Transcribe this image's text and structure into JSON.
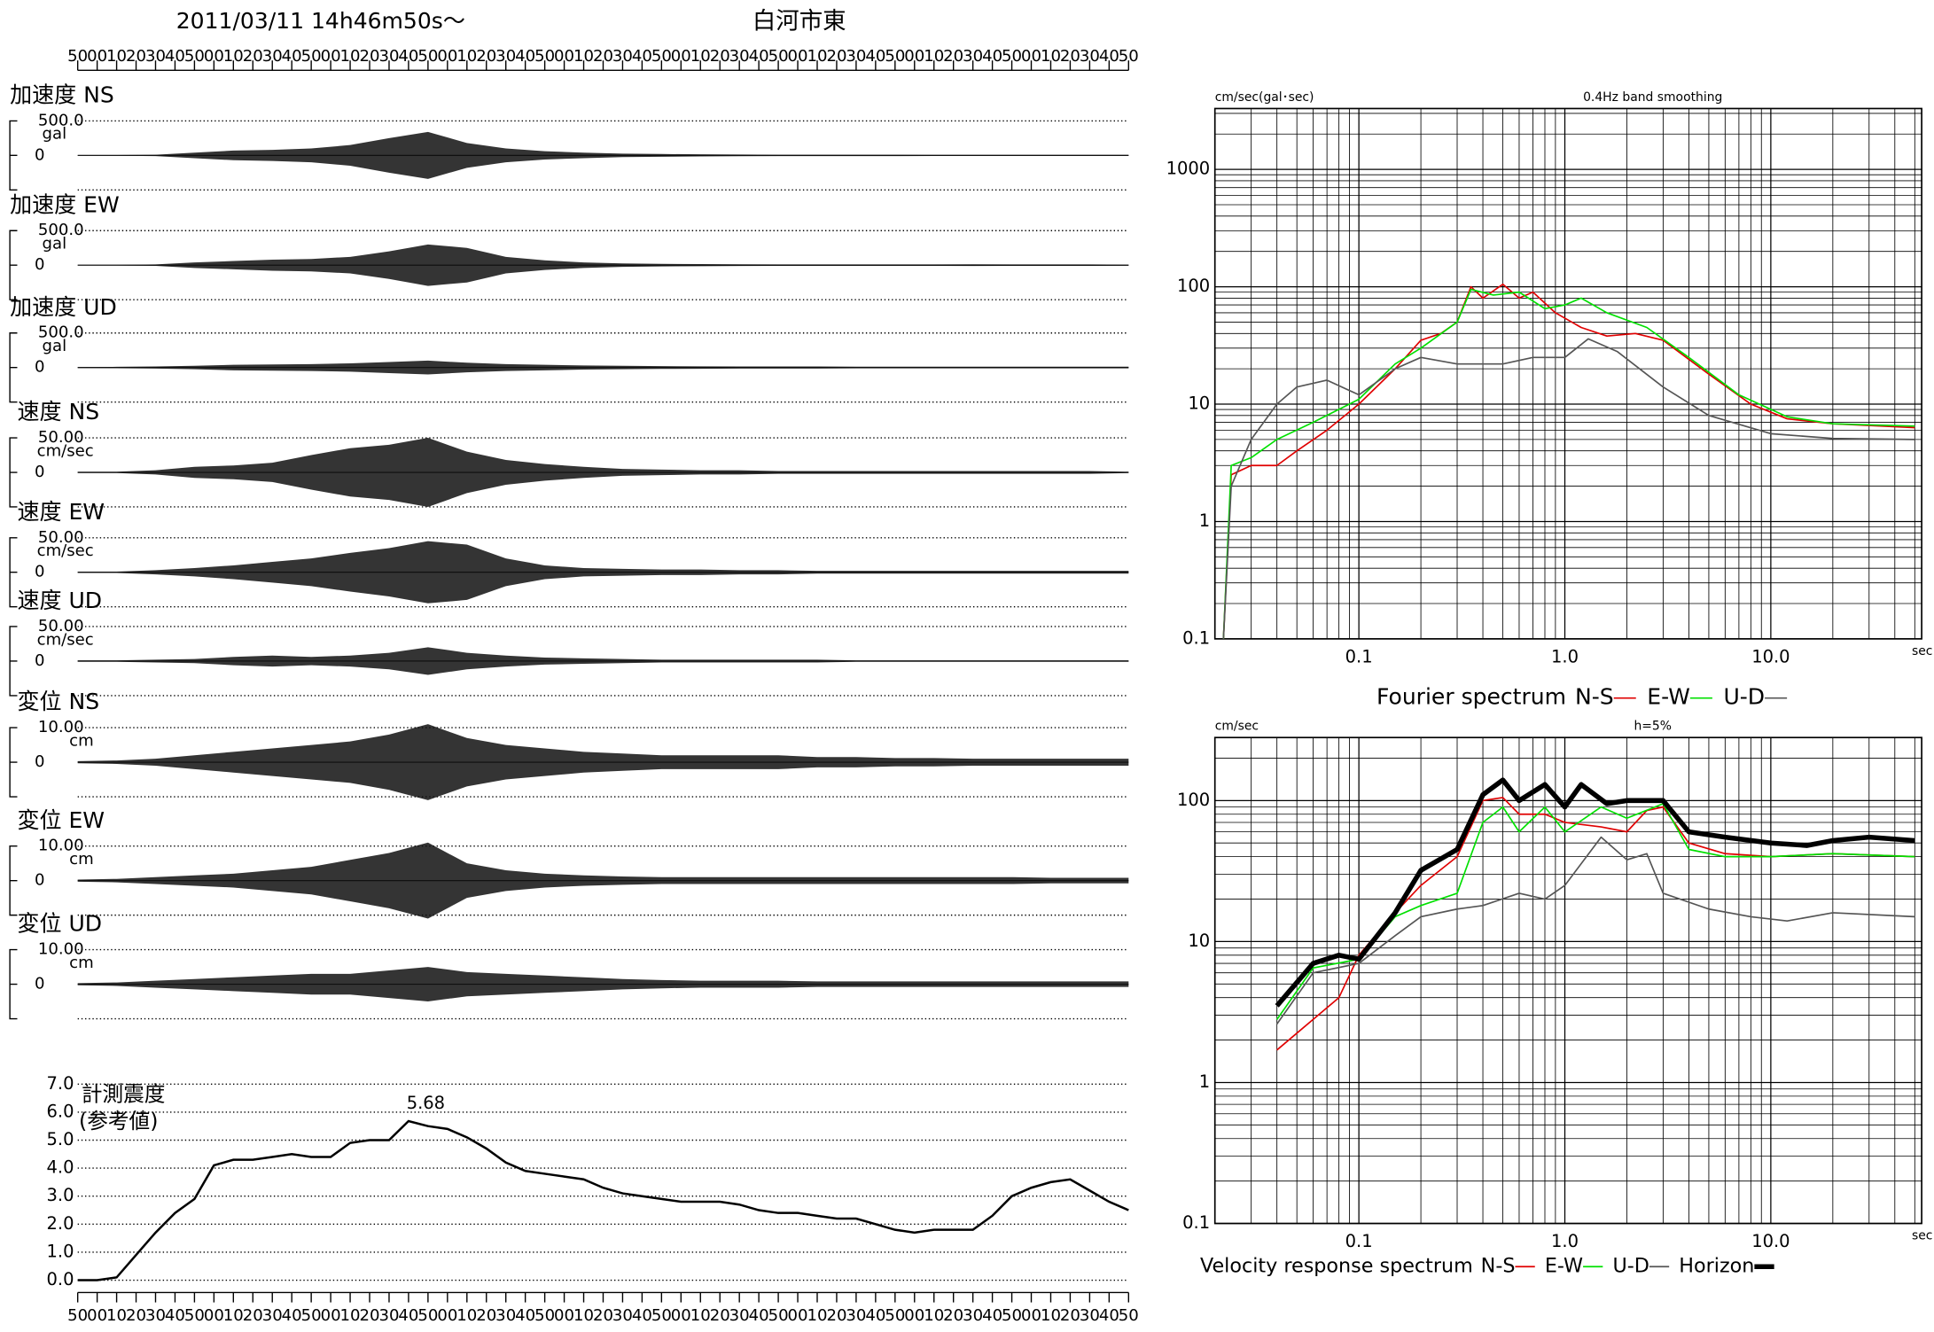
{
  "header": {
    "datetime": "2011/03/11  14h46m50s〜",
    "station": "白河市東"
  },
  "time_axis": [
    "50",
    "00",
    "10",
    "20",
    "30",
    "40",
    "50",
    "00",
    "10",
    "20",
    "30",
    "40",
    "50",
    "00",
    "10",
    "20",
    "30",
    "40",
    "50",
    "00",
    "10",
    "20",
    "30",
    "40",
    "50",
    "00",
    "10",
    "20",
    "30",
    "40",
    "50",
    "00",
    "10",
    "20",
    "30",
    "40",
    "50",
    "00",
    "10",
    "20",
    "30",
    "40",
    "50",
    "00",
    "10",
    "20",
    "30",
    "40",
    "50",
    "00",
    "10",
    "20",
    "30",
    "40",
    "50"
  ],
  "waveforms": [
    {
      "name": "加速度 NS",
      "scale": {
        "value": 500,
        "label": "500.0"
      },
      "unit": "gal",
      "zero": "0",
      "envelope": [
        5,
        5,
        10,
        40,
        70,
        80,
        100,
        150,
        250,
        340,
        180,
        100,
        60,
        40,
        25,
        20,
        15,
        12,
        10,
        10,
        10,
        10,
        8,
        8,
        8,
        8,
        8,
        8
      ]
    },
    {
      "name": "加速度 EW",
      "scale": {
        "value": 500,
        "label": "500.0"
      },
      "unit": "gal",
      "zero": "0",
      "envelope": [
        5,
        5,
        10,
        40,
        60,
        80,
        90,
        120,
        200,
        300,
        250,
        120,
        70,
        40,
        25,
        18,
        15,
        12,
        10,
        10,
        10,
        10,
        10,
        12,
        10,
        10,
        10,
        8
      ]
    },
    {
      "name": "加速度 UD",
      "scale": {
        "value": 500,
        "label": "500.0"
      },
      "unit": "gal",
      "zero": "0",
      "envelope": [
        8,
        10,
        15,
        25,
        40,
        45,
        50,
        60,
        80,
        100,
        70,
        50,
        40,
        30,
        25,
        20,
        18,
        15,
        15,
        15,
        12,
        12,
        12,
        12,
        12,
        12,
        12,
        12
      ]
    },
    {
      "name": "速度 NS",
      "scale": {
        "value": 50,
        "label": "50.00"
      },
      "unit": "cm/sec",
      "zero": "0",
      "envelope": [
        1,
        1,
        3,
        8,
        10,
        14,
        25,
        35,
        40,
        50,
        30,
        18,
        12,
        8,
        5,
        4,
        3,
        3,
        2,
        2,
        2,
        2,
        2,
        2,
        2,
        2,
        2,
        1
      ]
    },
    {
      "name": "速度 EW",
      "scale": {
        "value": 50,
        "label": "50.00"
      },
      "unit": "cm/sec",
      "zero": "0",
      "envelope": [
        1,
        1,
        3,
        6,
        10,
        15,
        20,
        28,
        35,
        45,
        40,
        20,
        10,
        6,
        5,
        4,
        4,
        3,
        3,
        2,
        2,
        2,
        2,
        2,
        2,
        2,
        2,
        2
      ]
    },
    {
      "name": "速度 UD",
      "scale": {
        "value": 50,
        "label": "50.00"
      },
      "unit": "cm/sec",
      "zero": "0",
      "envelope": [
        1,
        1,
        2,
        3,
        6,
        8,
        6,
        8,
        12,
        20,
        12,
        8,
        5,
        4,
        3,
        2,
        2,
        2,
        2,
        2,
        1,
        1,
        1,
        1,
        1,
        1,
        1,
        1
      ]
    },
    {
      "name": "変位 NS",
      "scale": {
        "value": 10,
        "label": "10.00"
      },
      "unit": "cm",
      "zero": "0",
      "envelope": [
        0.3,
        0.5,
        1,
        2,
        3,
        4,
        5,
        6,
        8,
        11,
        7,
        5,
        4,
        3,
        2.5,
        2,
        2,
        2,
        2,
        1.5,
        1.5,
        1.2,
        1.2,
        1,
        1,
        1,
        1,
        1
      ]
    },
    {
      "name": "変位 EW",
      "scale": {
        "value": 10,
        "label": "10.00"
      },
      "unit": "cm",
      "zero": "0",
      "envelope": [
        0.3,
        0.5,
        1,
        1.5,
        2,
        3,
        4,
        6,
        8,
        11,
        5,
        3,
        2,
        1.5,
        1.2,
        1,
        1,
        1,
        1,
        1,
        1,
        1,
        1,
        1,
        1,
        0.8,
        0.8,
        0.8
      ]
    },
    {
      "name": "変位 UD",
      "scale": {
        "value": 10,
        "label": "10.00"
      },
      "unit": "cm",
      "zero": "0",
      "envelope": [
        0.3,
        0.5,
        1,
        1.5,
        2,
        2.5,
        3,
        3,
        4,
        5,
        3.5,
        3,
        2.5,
        2,
        1.5,
        1.2,
        1,
        1,
        1,
        0.8,
        0.8,
        0.8,
        0.8,
        0.8,
        0.8,
        0.8,
        0.8,
        0.8
      ]
    }
  ],
  "intensity": {
    "title": "計測震度",
    "subtitle": "(参考値)",
    "peak_label": "5.68",
    "ylim": [
      0,
      7
    ],
    "yticks": [
      {
        "value": 0,
        "label": "0.0"
      },
      {
        "value": 1,
        "label": "1.0"
      },
      {
        "value": 2,
        "label": "2.0"
      },
      {
        "value": 3,
        "label": "3.0"
      },
      {
        "value": 4,
        "label": "4.0"
      },
      {
        "value": 5,
        "label": "5.0"
      },
      {
        "value": 6,
        "label": "6.0"
      },
      {
        "value": 7,
        "label": "7.0"
      }
    ],
    "values": [
      0,
      0,
      0.1,
      0.9,
      1.7,
      2.4,
      2.9,
      4.1,
      4.3,
      4.3,
      4.4,
      4.5,
      4.4,
      4.4,
      4.9,
      5.0,
      5.0,
      5.68,
      5.5,
      5.4,
      5.1,
      4.7,
      4.2,
      3.9,
      3.8,
      3.7,
      3.6,
      3.3,
      3.1,
      3.0,
      2.9,
      2.8,
      2.8,
      2.8,
      2.7,
      2.5,
      2.4,
      2.4,
      2.3,
      2.2,
      2.2,
      2.0,
      1.8,
      1.7,
      1.8,
      1.8,
      1.8,
      2.3,
      3.0,
      3.3,
      3.5,
      3.6,
      3.2,
      2.8,
      2.5
    ]
  },
  "chart_data": [
    {
      "type": "line",
      "log_x": true,
      "log_y": true,
      "grid": true,
      "y_unit": "cm/sec(gal･sec)",
      "subtitle": "0.4Hz band smoothing",
      "x_unit": "sec",
      "legend_title": "Fourier spectrum",
      "xlim": [
        0.02,
        54
      ],
      "ylim": [
        0.1,
        3300
      ],
      "xticks": [
        0.1,
        {
          "value": 1,
          "label": "1.0"
        },
        {
          "value": 10,
          "label": "10.0"
        }
      ],
      "yticks": [
        0.1,
        1,
        10,
        100,
        1000
      ],
      "series": [
        {
          "name": "N-S",
          "color": "#e00000",
          "linewidth": 1.2,
          "x": [
            0.022,
            0.024,
            0.03,
            0.04,
            0.05,
            0.07,
            0.1,
            0.15,
            0.2,
            0.25,
            0.3,
            0.35,
            0.4,
            0.5,
            0.6,
            0.7,
            0.9,
            1.2,
            1.6,
            2.2,
            3,
            5,
            8,
            12,
            20,
            50
          ],
          "values": [
            0.1,
            2.5,
            3,
            3,
            4,
            6,
            10,
            20,
            35,
            40,
            50,
            100,
            80,
            105,
            80,
            90,
            60,
            45,
            38,
            40,
            35,
            18,
            10,
            7.5,
            6.8,
            6.3
          ]
        },
        {
          "name": "E-W",
          "color": "#00e000",
          "linewidth": 1.2,
          "x": [
            0.022,
            0.024,
            0.03,
            0.04,
            0.06,
            0.1,
            0.15,
            0.2,
            0.3,
            0.35,
            0.45,
            0.6,
            0.8,
            1.0,
            1.2,
            1.6,
            2.5,
            4,
            7,
            12,
            20,
            50
          ],
          "values": [
            0.1,
            3,
            3.5,
            5,
            7,
            11,
            22,
            30,
            50,
            95,
            85,
            90,
            65,
            70,
            80,
            60,
            45,
            25,
            12,
            7.8,
            6.8,
            6.5
          ]
        },
        {
          "name": "U-D",
          "color": "#555555",
          "linewidth": 1.2,
          "x": [
            0.022,
            0.024,
            0.03,
            0.04,
            0.05,
            0.07,
            0.1,
            0.15,
            0.2,
            0.3,
            0.5,
            0.7,
            1.0,
            1.3,
            1.8,
            3,
            5,
            10,
            20,
            50
          ],
          "values": [
            0.1,
            2,
            5,
            10,
            14,
            16,
            12,
            20,
            25,
            22,
            22,
            25,
            25,
            36,
            28,
            14,
            8,
            5.6,
            5.1,
            5
          ]
        }
      ]
    },
    {
      "type": "line",
      "log_x": true,
      "log_y": true,
      "grid": true,
      "y_unit": "cm/sec",
      "subtitle": "h=5%",
      "x_unit": "sec",
      "legend_title": "Velocity response spectrum",
      "xlim": [
        0.02,
        54
      ],
      "ylim": [
        0.1,
        280
      ],
      "xticks": [
        0.1,
        {
          "value": 1,
          "label": "1.0"
        },
        {
          "value": 10,
          "label": "10.0"
        }
      ],
      "yticks": [
        0.1,
        1,
        10,
        100
      ],
      "series": [
        {
          "name": "N-S",
          "color": "#e00000",
          "linewidth": 1.2,
          "x": [
            0.04,
            0.08,
            0.1,
            0.15,
            0.2,
            0.3,
            0.4,
            0.5,
            0.6,
            0.8,
            1,
            1.5,
            2,
            2.5,
            3,
            4,
            6,
            10,
            20,
            50
          ],
          "values": [
            1.7,
            4,
            8,
            16,
            25,
            40,
            100,
            105,
            80,
            80,
            70,
            65,
            60,
            85,
            90,
            50,
            42,
            40,
            42,
            40
          ]
        },
        {
          "name": "E-W",
          "color": "#00e000",
          "linewidth": 1.2,
          "x": [
            0.04,
            0.06,
            0.1,
            0.15,
            0.2,
            0.3,
            0.4,
            0.5,
            0.6,
            0.8,
            1,
            1.5,
            2,
            3,
            4,
            6,
            10,
            20,
            50
          ],
          "values": [
            2.8,
            6.5,
            7.5,
            15,
            18,
            22,
            70,
            90,
            60,
            90,
            60,
            90,
            75,
            95,
            45,
            40,
            40,
            42,
            40
          ]
        },
        {
          "name": "U-D",
          "color": "#555555",
          "linewidth": 1.2,
          "x": [
            0.04,
            0.06,
            0.1,
            0.15,
            0.2,
            0.3,
            0.4,
            0.6,
            0.8,
            1,
            1.5,
            2,
            2.5,
            3,
            5,
            8,
            12,
            20,
            50
          ],
          "values": [
            2.6,
            6,
            7,
            11,
            15,
            17,
            18,
            22,
            20,
            25,
            55,
            38,
            42,
            22,
            17,
            15,
            14,
            16,
            15
          ]
        },
        {
          "name": "Horizon",
          "color": "#000000",
          "linewidth": 4,
          "x": [
            0.04,
            0.06,
            0.08,
            0.1,
            0.15,
            0.2,
            0.3,
            0.4,
            0.5,
            0.6,
            0.8,
            1,
            1.2,
            1.6,
            2,
            3,
            4,
            6,
            10,
            15,
            20,
            30,
            50
          ],
          "values": [
            3.5,
            7,
            8,
            7.5,
            16,
            32,
            45,
            110,
            140,
            100,
            130,
            90,
            130,
            95,
            100,
            100,
            60,
            55,
            50,
            48,
            52,
            55,
            52
          ]
        }
      ]
    }
  ]
}
